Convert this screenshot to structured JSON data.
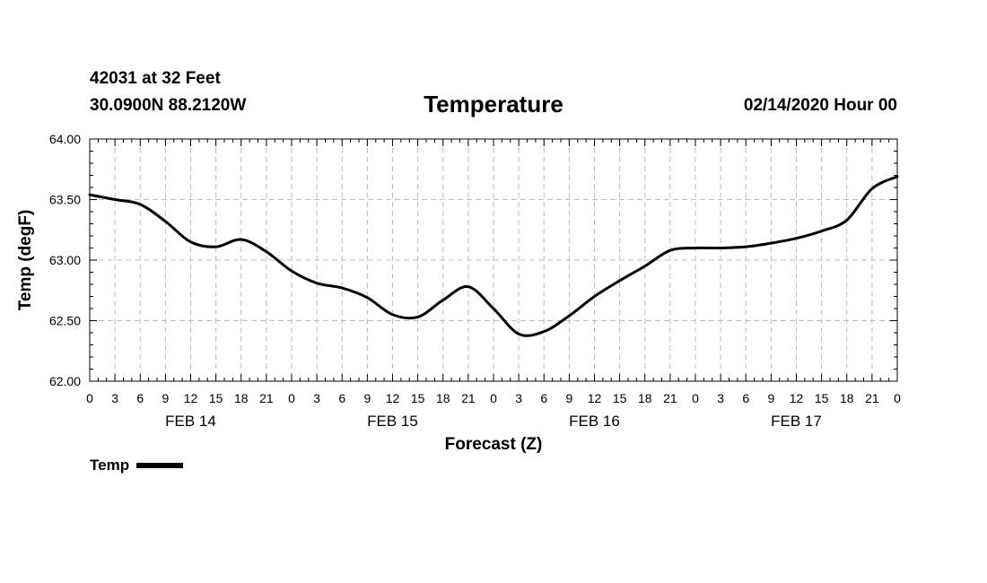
{
  "header": {
    "station": "42031 at 32 Feet",
    "coords": "30.0900N 88.2120W",
    "title": "Temperature",
    "datetime": "02/14/2020 Hour 00"
  },
  "legend": {
    "label": "Temp"
  },
  "chart_data": {
    "type": "line",
    "title": "Temperature",
    "xlabel": "Forecast (Z)",
    "ylabel": "Temp (degF)",
    "ylim": [
      62.0,
      64.0
    ],
    "yticks": [
      "62.00",
      "62.50",
      "63.00",
      "63.50",
      "64.00"
    ],
    "xlim": [
      0,
      96
    ],
    "xticks": [
      "0",
      "3",
      "6",
      "9",
      "12",
      "15",
      "18",
      "21",
      "0",
      "3",
      "6",
      "9",
      "12",
      "15",
      "18",
      "21",
      "0",
      "3",
      "6",
      "9",
      "12",
      "15",
      "18",
      "21",
      "0",
      "3",
      "6",
      "9",
      "12",
      "15",
      "18",
      "21",
      "0"
    ],
    "day_labels": [
      {
        "label": "FEB 14",
        "hour": 12
      },
      {
        "label": "FEB 15",
        "hour": 36
      },
      {
        "label": "FEB 16",
        "hour": 60
      },
      {
        "label": "FEB 17",
        "hour": 84
      }
    ],
    "grid": true,
    "legend_position": "bottom-left",
    "series": [
      {
        "name": "Temp",
        "color": "#000000",
        "x": [
          0,
          3,
          6,
          9,
          12,
          15,
          18,
          21,
          24,
          27,
          30,
          33,
          36,
          39,
          42,
          45,
          48,
          51,
          54,
          57,
          60,
          63,
          66,
          69,
          72,
          75,
          78,
          81,
          84,
          87,
          90,
          93,
          96
        ],
        "values": [
          63.54,
          63.5,
          63.46,
          63.32,
          63.15,
          63.11,
          63.17,
          63.07,
          62.91,
          62.81,
          62.77,
          62.69,
          62.55,
          62.53,
          62.67,
          62.78,
          62.6,
          62.39,
          62.41,
          62.54,
          62.7,
          62.83,
          62.95,
          63.08,
          63.1,
          63.1,
          63.11,
          63.14,
          63.18,
          63.24,
          63.33,
          63.59,
          63.69
        ]
      }
    ]
  }
}
